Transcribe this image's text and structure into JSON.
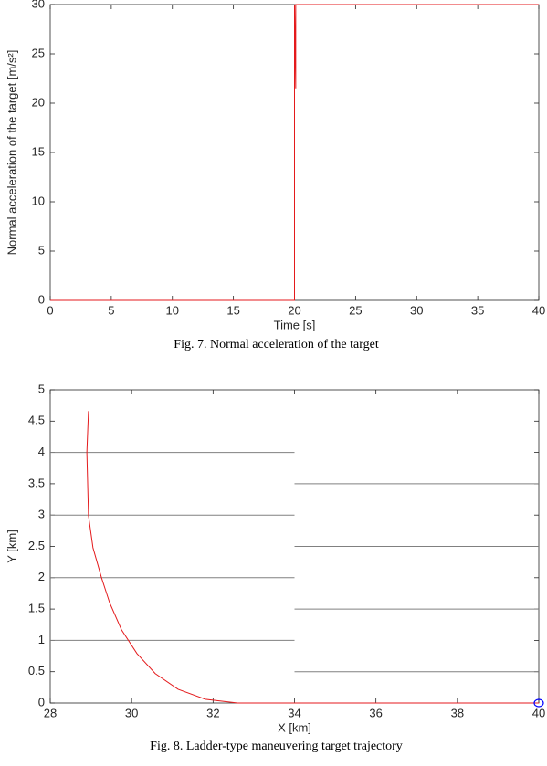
{
  "chart_data": [
    {
      "type": "line",
      "xlabel": "Time [s]",
      "ylabel": "Normal acceleration of the target [m/s²]",
      "caption": "Fig. 7. Normal acceleration of the target",
      "xlim": [
        0,
        40
      ],
      "ylim": [
        0,
        30
      ],
      "xticks": [
        0,
        5,
        10,
        15,
        20,
        25,
        30,
        35,
        40
      ],
      "yticks": [
        0,
        5,
        10,
        15,
        20,
        25,
        30
      ],
      "series": [
        {
          "color": "#e41a1c",
          "x": [
            0,
            20,
            20,
            20.1,
            20.1,
            40
          ],
          "values": [
            0,
            0,
            30,
            21.5,
            30,
            30
          ]
        }
      ]
    },
    {
      "type": "line",
      "xlabel": "X [km]",
      "ylabel": "Y [km]",
      "caption": "Fig. 8. Ladder-type maneuvering target trajectory",
      "xlim": [
        28,
        40
      ],
      "ylim": [
        0,
        5
      ],
      "xticks": [
        28,
        30,
        32,
        34,
        36,
        38,
        40
      ],
      "yticks": [
        0,
        0.5,
        1,
        1.5,
        2,
        2.5,
        3,
        3.5,
        4,
        4.5,
        5
      ],
      "series": [
        {
          "color": "#808080",
          "x": [
            28,
            34,
            null,
            28,
            34,
            null,
            28,
            34,
            null,
            28,
            34,
            null,
            34,
            40,
            null,
            34,
            40,
            null,
            34,
            40,
            null,
            34,
            40
          ],
          "values": [
            1,
            1,
            null,
            2,
            2,
            null,
            3,
            3,
            null,
            4,
            4,
            null,
            0.5,
            0.5,
            null,
            1.5,
            1.5,
            null,
            2.5,
            2.5,
            null,
            3.5,
            3.5
          ]
        },
        {
          "color": "#e41a1c",
          "x": [
            28.94,
            28.9,
            28.94,
            29.05,
            29.26,
            29.46,
            29.75,
            30.13,
            30.58,
            31.14,
            31.81,
            32.6,
            40
          ],
          "values": [
            4.66,
            4.0,
            2.99,
            2.48,
            2.0,
            1.6,
            1.17,
            0.79,
            0.47,
            0.22,
            0.06,
            0,
            0
          ]
        },
        {
          "color": "#0000ff",
          "marker": "circle",
          "x": [
            40
          ],
          "values": [
            0
          ]
        }
      ]
    }
  ]
}
